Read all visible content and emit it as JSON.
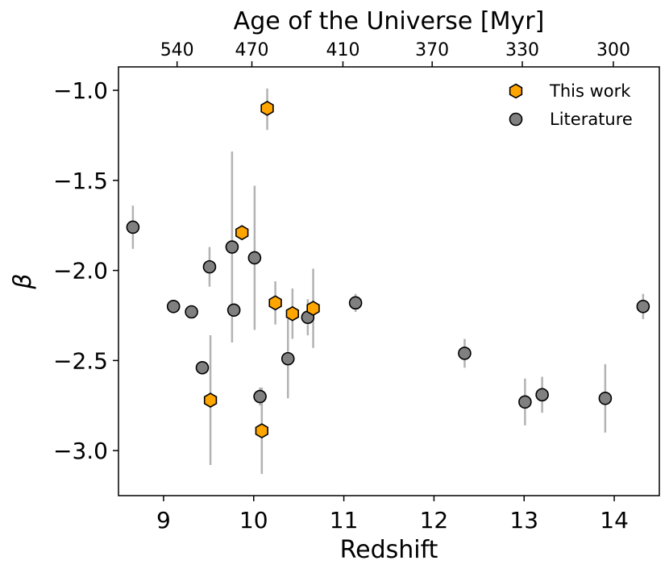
{
  "chart_data": {
    "type": "scatter",
    "xlabel": "Redshift",
    "ylabel": "β",
    "top_xlabel": "Age of the Universe [Myr]",
    "xlim": [
      8.5,
      14.5
    ],
    "ylim": [
      -3.25,
      -0.87
    ],
    "x_ticks": [
      9,
      10,
      11,
      12,
      13,
      14
    ],
    "y_ticks": [
      -1.0,
      -1.5,
      -2.0,
      -2.5,
      -3.0
    ],
    "y_tick_labels": [
      "−1.0",
      "−1.5",
      "−2.0",
      "−2.5",
      "−3.0"
    ],
    "top_ticks": [
      {
        "label": "540",
        "z": 9.15
      },
      {
        "label": "470",
        "z": 9.98
      },
      {
        "label": "410",
        "z": 10.99
      },
      {
        "label": "370",
        "z": 11.98
      },
      {
        "label": "330",
        "z": 12.98
      },
      {
        "label": "300",
        "z": 13.99
      }
    ],
    "series": [
      {
        "name": "This work",
        "marker": "hexagon",
        "color": "#ffa500",
        "points": [
          {
            "x": 10.15,
            "y": -1.1,
            "err_lo": 0.12,
            "err_hi": 0.11
          },
          {
            "x": 9.87,
            "y": -1.79,
            "err_lo": 0.04,
            "err_hi": 0.04
          },
          {
            "x": 10.24,
            "y": -2.18,
            "err_lo": 0.12,
            "err_hi": 0.12
          },
          {
            "x": 10.43,
            "y": -2.24,
            "err_lo": 0.14,
            "err_hi": 0.14
          },
          {
            "x": 10.66,
            "y": -2.21,
            "err_lo": 0.22,
            "err_hi": 0.22
          },
          {
            "x": 9.52,
            "y": -2.72,
            "err_lo": 0.36,
            "err_hi": 0.36
          },
          {
            "x": 10.09,
            "y": -2.89,
            "err_lo": 0.24,
            "err_hi": 0.24
          }
        ]
      },
      {
        "name": "Literature",
        "marker": "circle",
        "color": "#808080",
        "points": [
          {
            "x": 8.66,
            "y": -1.76,
            "err_lo": 0.12,
            "err_hi": 0.12
          },
          {
            "x": 9.11,
            "y": -2.2,
            "err_lo": 0.0,
            "err_hi": 0.0
          },
          {
            "x": 9.31,
            "y": -2.23,
            "err_lo": 0.0,
            "err_hi": 0.0
          },
          {
            "x": 9.43,
            "y": -2.54,
            "err_lo": 0.0,
            "err_hi": 0.0
          },
          {
            "x": 9.51,
            "y": -1.98,
            "err_lo": 0.11,
            "err_hi": 0.11
          },
          {
            "x": 9.76,
            "y": -1.87,
            "err_lo": 0.53,
            "err_hi": 0.53
          },
          {
            "x": 9.78,
            "y": -2.22,
            "err_lo": 0.0,
            "err_hi": 0.0
          },
          {
            "x": 10.01,
            "y": -1.93,
            "err_lo": 0.4,
            "err_hi": 0.4
          },
          {
            "x": 10.07,
            "y": -2.7,
            "err_lo": 0.05,
            "err_hi": 0.05
          },
          {
            "x": 10.38,
            "y": -2.49,
            "err_lo": 0.22,
            "err_hi": 0.22
          },
          {
            "x": 10.6,
            "y": -2.26,
            "err_lo": 0.1,
            "err_hi": 0.1
          },
          {
            "x": 11.13,
            "y": -2.18,
            "err_lo": 0.05,
            "err_hi": 0.05
          },
          {
            "x": 12.34,
            "y": -2.46,
            "err_lo": 0.08,
            "err_hi": 0.08
          },
          {
            "x": 13.01,
            "y": -2.73,
            "err_lo": 0.13,
            "err_hi": 0.13
          },
          {
            "x": 13.2,
            "y": -2.69,
            "err_lo": 0.1,
            "err_hi": 0.1
          },
          {
            "x": 13.9,
            "y": -2.71,
            "err_lo": 0.19,
            "err_hi": 0.19
          },
          {
            "x": 14.32,
            "y": -2.2,
            "err_lo": 0.07,
            "err_hi": 0.07
          }
        ]
      }
    ],
    "legend": {
      "position": "top-right",
      "entries": [
        "This work",
        "Literature"
      ]
    },
    "errorbar_color": "#b3b3b3",
    "grid": false
  }
}
